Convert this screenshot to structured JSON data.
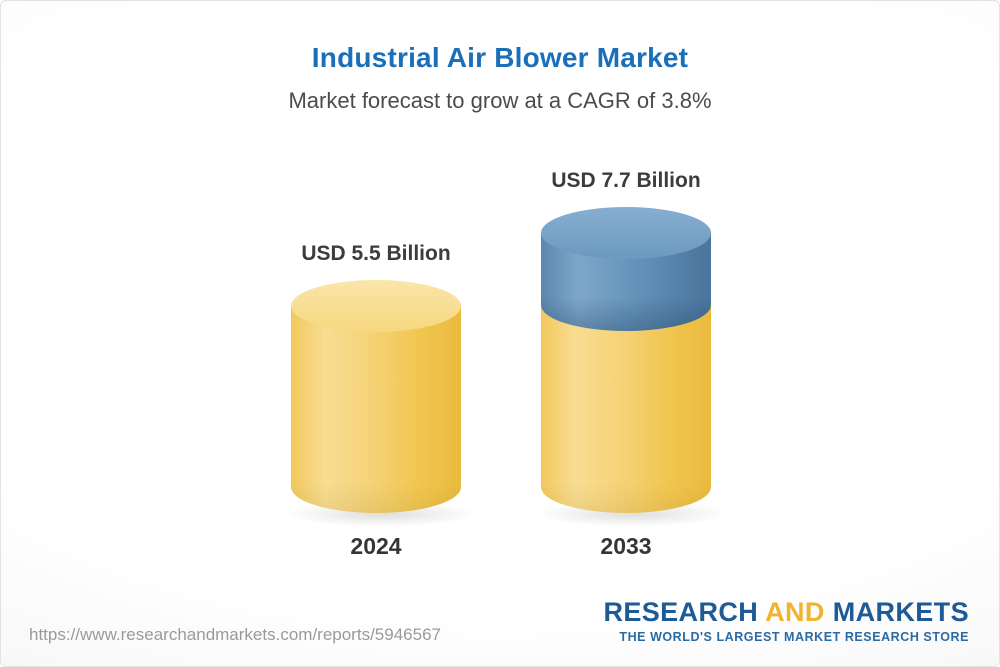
{
  "header": {
    "title": "Industrial Air Blower Market",
    "subtitle": "Market forecast to grow at a CAGR of 3.8%"
  },
  "chart_data": {
    "type": "bar",
    "style": "3d-cylinder",
    "title": "Industrial Air Blower Market",
    "subtitle": "Market forecast to grow at a CAGR of 3.8%",
    "cagr": "3.8%",
    "unit": "USD Billion",
    "categories": [
      "2024",
      "2033"
    ],
    "values": [
      5.5,
      7.7
    ],
    "value_labels": [
      "USD 5.5 Billion",
      "USD 7.7 Billion"
    ],
    "segments": [
      [
        {
          "value": 5.5,
          "color": "yellow"
        }
      ],
      [
        {
          "value": 5.5,
          "color": "yellow"
        },
        {
          "value": 2.2,
          "color": "blue"
        }
      ]
    ],
    "palette": {
      "yellow": "#f2c95c",
      "blue": "#5c88af"
    },
    "legend": "none",
    "grid": "off",
    "axes": "none"
  },
  "footer": {
    "url": "https://www.researchandmarkets.com/reports/5946567",
    "logo": {
      "research": "RESEARCH",
      "and": "AND",
      "markets": "MARKETS",
      "tagline": "THE WORLD'S LARGEST MARKET RESEARCH STORE"
    }
  }
}
